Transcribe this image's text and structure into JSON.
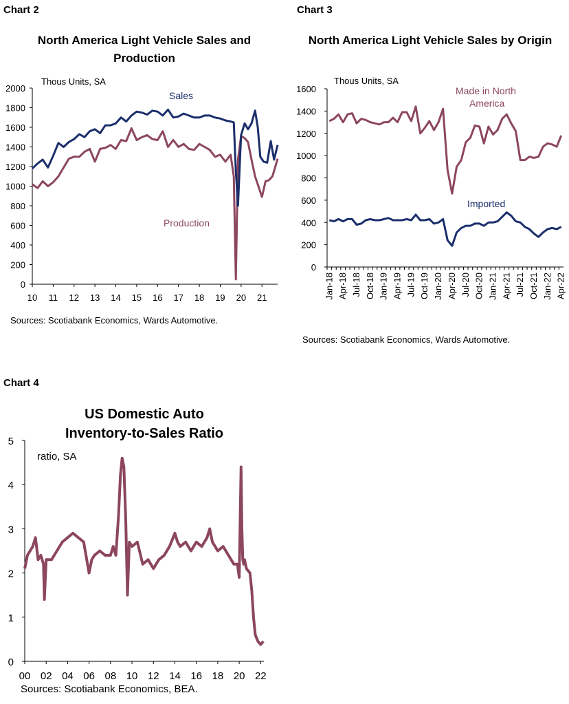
{
  "chart_data": [
    {
      "id": "chart2",
      "label": "Chart 2",
      "type": "line",
      "title": "North America Light Vehicle Sales and Production",
      "units": "Thous Units, SA",
      "source": "Sources: Scotiabank Economics, Wards Automotive.",
      "xlabel": "",
      "ylabel": "",
      "ylim": [
        0,
        2000
      ],
      "yticks": [
        0,
        200,
        400,
        600,
        800,
        1000,
        1200,
        1400,
        1600,
        1800,
        2000
      ],
      "xlim": [
        2010,
        2021.75
      ],
      "xticks": [
        {
          "v": 2010,
          "label": "10"
        },
        {
          "v": 2011,
          "label": "11"
        },
        {
          "v": 2012,
          "label": "12"
        },
        {
          "v": 2013,
          "label": "13"
        },
        {
          "v": 2014,
          "label": "14"
        },
        {
          "v": 2015,
          "label": "15"
        },
        {
          "v": 2016,
          "label": "16"
        },
        {
          "v": 2017,
          "label": "17"
        },
        {
          "v": 2018,
          "label": "18"
        },
        {
          "v": 2019,
          "label": "19"
        },
        {
          "v": 2020,
          "label": "20"
        },
        {
          "v": 2021,
          "label": "21"
        }
      ],
      "grid": false,
      "series": [
        {
          "name": "Sales",
          "color": "#1b2f6b",
          "x": [
            2010.0,
            2010.25,
            2010.5,
            2010.75,
            2011.0,
            2011.25,
            2011.5,
            2011.75,
            2012.0,
            2012.25,
            2012.5,
            2012.75,
            2013.0,
            2013.25,
            2013.5,
            2013.75,
            2014.0,
            2014.25,
            2014.5,
            2014.75,
            2015.0,
            2015.25,
            2015.5,
            2015.75,
            2016.0,
            2016.25,
            2016.5,
            2016.75,
            2017.0,
            2017.25,
            2017.5,
            2017.75,
            2018.0,
            2018.25,
            2018.5,
            2018.75,
            2019.0,
            2019.25,
            2019.5,
            2019.65,
            2019.75,
            2019.85,
            2020.0,
            2020.17,
            2020.33,
            2020.5,
            2020.67,
            2020.8,
            2020.92,
            2021.08,
            2021.25,
            2021.42,
            2021.58,
            2021.75
          ],
          "y": [
            1180,
            1230,
            1270,
            1190,
            1310,
            1440,
            1400,
            1450,
            1480,
            1530,
            1500,
            1560,
            1580,
            1540,
            1620,
            1620,
            1640,
            1700,
            1660,
            1720,
            1760,
            1750,
            1730,
            1770,
            1760,
            1720,
            1780,
            1700,
            1710,
            1740,
            1720,
            1700,
            1700,
            1720,
            1720,
            1700,
            1690,
            1670,
            1660,
            1650,
            1150,
            800,
            1520,
            1640,
            1580,
            1640,
            1770,
            1600,
            1300,
            1250,
            1240,
            1460,
            1270,
            1420
          ]
        },
        {
          "name": "Production",
          "color": "#8c4660",
          "x": [
            2010.0,
            2010.25,
            2010.5,
            2010.75,
            2011.0,
            2011.25,
            2011.5,
            2011.75,
            2012.0,
            2012.25,
            2012.5,
            2012.75,
            2013.0,
            2013.25,
            2013.5,
            2013.75,
            2014.0,
            2014.25,
            2014.5,
            2014.75,
            2015.0,
            2015.25,
            2015.5,
            2015.75,
            2016.0,
            2016.25,
            2016.5,
            2016.75,
            2017.0,
            2017.25,
            2017.5,
            2017.75,
            2018.0,
            2018.25,
            2018.5,
            2018.75,
            2019.0,
            2019.25,
            2019.5,
            2019.65,
            2019.75,
            2019.85,
            2020.0,
            2020.17,
            2020.33,
            2020.5,
            2020.67,
            2020.83,
            2021.0,
            2021.17,
            2021.33,
            2021.5,
            2021.67,
            2021.75
          ],
          "y": [
            1020,
            980,
            1050,
            1000,
            1040,
            1100,
            1190,
            1280,
            1300,
            1300,
            1350,
            1380,
            1250,
            1380,
            1390,
            1420,
            1380,
            1470,
            1460,
            1590,
            1470,
            1500,
            1520,
            1480,
            1470,
            1560,
            1400,
            1470,
            1400,
            1430,
            1380,
            1370,
            1430,
            1400,
            1370,
            1300,
            1320,
            1250,
            1320,
            1100,
            50,
            1270,
            1510,
            1490,
            1450,
            1270,
            1100,
            1000,
            890,
            1050,
            1060,
            1100,
            1220,
            1280
          ]
        }
      ],
      "annotations": [
        "Sales",
        "Production"
      ]
    },
    {
      "id": "chart3",
      "label": "Chart 3",
      "type": "line",
      "title": "North America Light Vehicle Sales by Origin",
      "units": "Thous Units, SA",
      "source": "Sources: Scotiabank Economics, Wards Automotive.",
      "xlabel": "",
      "ylabel": "",
      "ylim": [
        0,
        1600
      ],
      "yticks": [
        0,
        200,
        400,
        600,
        800,
        1000,
        1200,
        1400,
        1600
      ],
      "categories": [
        "Jan-18",
        "Feb-18",
        "Mar-18",
        "Apr-18",
        "May-18",
        "Jun-18",
        "Jul-18",
        "Aug-18",
        "Sep-18",
        "Oct-18",
        "Nov-18",
        "Dec-18",
        "Jan-19",
        "Feb-19",
        "Mar-19",
        "Apr-19",
        "May-19",
        "Jun-19",
        "Jul-19",
        "Aug-19",
        "Sep-19",
        "Oct-19",
        "Nov-19",
        "Dec-19",
        "Jan-20",
        "Feb-20",
        "Mar-20",
        "Apr-20",
        "May-20",
        "Jun-20",
        "Jul-20",
        "Aug-20",
        "Sep-20",
        "Oct-20",
        "Nov-20",
        "Dec-20",
        "Jan-21",
        "Feb-21",
        "Mar-21",
        "Apr-21",
        "May-21",
        "Jun-21",
        "Jul-21",
        "Aug-21",
        "Sep-21",
        "Oct-21",
        "Nov-21",
        "Dec-21",
        "Jan-22",
        "Feb-22",
        "Mar-22",
        "Apr-22"
      ],
      "tick_labels": [
        "Jan-18",
        "Apr-18",
        "Jul-18",
        "Oct-18",
        "Jan-19",
        "Apr-19",
        "Jul-19",
        "Oct-19",
        "Jan-20",
        "Apr-20",
        "Jul-20",
        "Oct-20",
        "Jan-21",
        "Apr-21",
        "Jul-21",
        "Oct-21",
        "Jan-22",
        "Apr-22"
      ],
      "grid": false,
      "series": [
        {
          "name": "Made in North America",
          "color": "#8c4660",
          "values": [
            1310,
            1330,
            1370,
            1300,
            1370,
            1380,
            1290,
            1330,
            1320,
            1300,
            1290,
            1280,
            1300,
            1300,
            1340,
            1300,
            1390,
            1390,
            1310,
            1440,
            1200,
            1250,
            1310,
            1230,
            1300,
            1420,
            870,
            660,
            900,
            960,
            1120,
            1160,
            1270,
            1260,
            1110,
            1260,
            1190,
            1230,
            1330,
            1370,
            1290,
            1220,
            960,
            960,
            990,
            980,
            990,
            1080,
            1110,
            1100,
            1080,
            1180
          ]
        },
        {
          "name": "Imported",
          "color": "#1b2f6b",
          "values": [
            420,
            410,
            430,
            410,
            430,
            430,
            380,
            390,
            420,
            430,
            420,
            420,
            430,
            440,
            420,
            420,
            420,
            430,
            420,
            470,
            420,
            420,
            430,
            390,
            400,
            430,
            240,
            190,
            310,
            350,
            370,
            370,
            390,
            390,
            370,
            400,
            400,
            410,
            450,
            490,
            460,
            410,
            400,
            360,
            340,
            300,
            270,
            310,
            340,
            350,
            340,
            360
          ]
        }
      ]
    },
    {
      "id": "chart4",
      "label": "Chart 4",
      "type": "line",
      "title": "US Domestic Auto Inventory-to-Sales Ratio",
      "units": "ratio, SA",
      "source": "Sources: Scotiabank Economics, BEA.",
      "xlabel": "",
      "ylabel": "",
      "ylim": [
        0,
        5
      ],
      "yticks": [
        0,
        1,
        2,
        3,
        4,
        5
      ],
      "xlim": [
        2000,
        2022.3
      ],
      "xticks": [
        {
          "v": 2000,
          "label": "00"
        },
        {
          "v": 2002,
          "label": "02"
        },
        {
          "v": 2004,
          "label": "04"
        },
        {
          "v": 2006,
          "label": "06"
        },
        {
          "v": 2008,
          "label": "08"
        },
        {
          "v": 2010,
          "label": "10"
        },
        {
          "v": 2012,
          "label": "12"
        },
        {
          "v": 2014,
          "label": "14"
        },
        {
          "v": 2016,
          "label": "16"
        },
        {
          "v": 2018,
          "label": "18"
        },
        {
          "v": 2020,
          "label": "20"
        },
        {
          "v": 2022,
          "label": "22"
        }
      ],
      "grid": false,
      "series": [
        {
          "name": "",
          "color": "#8c4660",
          "x": [
            2000.0,
            2000.25,
            2000.5,
            2000.75,
            2001.0,
            2001.25,
            2001.5,
            2001.75,
            2001.83,
            2002.0,
            2002.5,
            2003.0,
            2003.5,
            2004.0,
            2004.5,
            2005.0,
            2005.5,
            2006.0,
            2006.25,
            2006.5,
            2007.0,
            2007.5,
            2008.0,
            2008.25,
            2008.5,
            2008.75,
            2008.92,
            2009.08,
            2009.25,
            2009.42,
            2009.58,
            2009.75,
            2010.0,
            2010.5,
            2011.0,
            2011.5,
            2012.0,
            2012.5,
            2013.0,
            2013.5,
            2014.0,
            2014.25,
            2014.5,
            2015.0,
            2015.5,
            2016.0,
            2016.5,
            2017.0,
            2017.25,
            2017.5,
            2017.75,
            2018.0,
            2018.5,
            2019.0,
            2019.5,
            2019.83,
            2020.0,
            2020.17,
            2020.25,
            2020.33,
            2020.42,
            2020.5,
            2020.67,
            2021.0,
            2021.17,
            2021.33,
            2021.5,
            2021.75,
            2022.0,
            2022.25
          ],
          "y": [
            2.1,
            2.4,
            2.5,
            2.6,
            2.8,
            2.3,
            2.4,
            2.2,
            1.4,
            2.3,
            2.3,
            2.5,
            2.7,
            2.8,
            2.9,
            2.8,
            2.7,
            2.0,
            2.3,
            2.4,
            2.5,
            2.4,
            2.4,
            2.6,
            2.4,
            3.3,
            4.2,
            4.6,
            4.4,
            3.2,
            1.5,
            2.7,
            2.6,
            2.7,
            2.2,
            2.3,
            2.1,
            2.3,
            2.4,
            2.6,
            2.9,
            2.7,
            2.6,
            2.7,
            2.5,
            2.7,
            2.6,
            2.8,
            3.0,
            2.7,
            2.6,
            2.5,
            2.6,
            2.4,
            2.2,
            2.2,
            1.9,
            4.4,
            3.0,
            2.3,
            2.2,
            2.3,
            2.1,
            2.0,
            1.6,
            1.0,
            0.6,
            0.45,
            0.38,
            0.45
          ]
        }
      ]
    }
  ]
}
